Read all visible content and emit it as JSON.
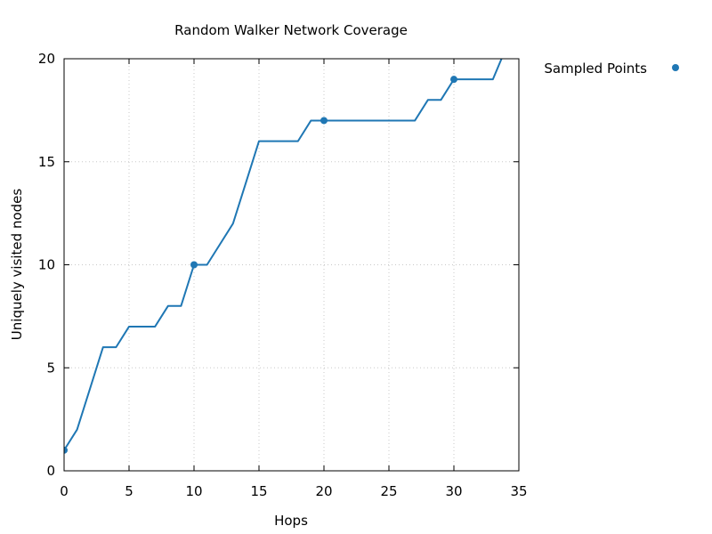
{
  "chart_data": {
    "type": "line",
    "title": "Random Walker Network Coverage",
    "xlabel": "Hops",
    "ylabel": "Uniquely visited nodes",
    "xlim": [
      0,
      35
    ],
    "ylim": [
      0,
      20
    ],
    "xticks": [
      0,
      5,
      10,
      15,
      20,
      25,
      30,
      35
    ],
    "yticks": [
      0,
      5,
      10,
      15,
      20
    ],
    "grid": true,
    "legend_position": "outside-top-right",
    "series": [
      {
        "type": "line",
        "color": "#1f77b4",
        "x": [
          0,
          1,
          2,
          3,
          4,
          5,
          6,
          7,
          8,
          9,
          10,
          11,
          12,
          13,
          14,
          15,
          16,
          17,
          18,
          19,
          20,
          21,
          22,
          23,
          24,
          25,
          26,
          27,
          28,
          29,
          30,
          31,
          32,
          33,
          34
        ],
        "y": [
          1,
          2,
          4,
          6,
          6,
          7,
          7,
          7,
          8,
          8,
          10,
          10,
          11,
          12,
          14,
          16,
          16,
          16,
          16,
          17,
          17,
          17,
          17,
          17,
          17,
          17,
          17,
          17,
          18,
          18,
          19,
          19,
          19,
          19,
          20.5
        ]
      },
      {
        "name": "Sampled Points",
        "type": "scatter",
        "color": "#1f77b4",
        "x": [
          0,
          10,
          20,
          30
        ],
        "y": [
          1,
          10,
          17,
          19
        ]
      }
    ]
  }
}
